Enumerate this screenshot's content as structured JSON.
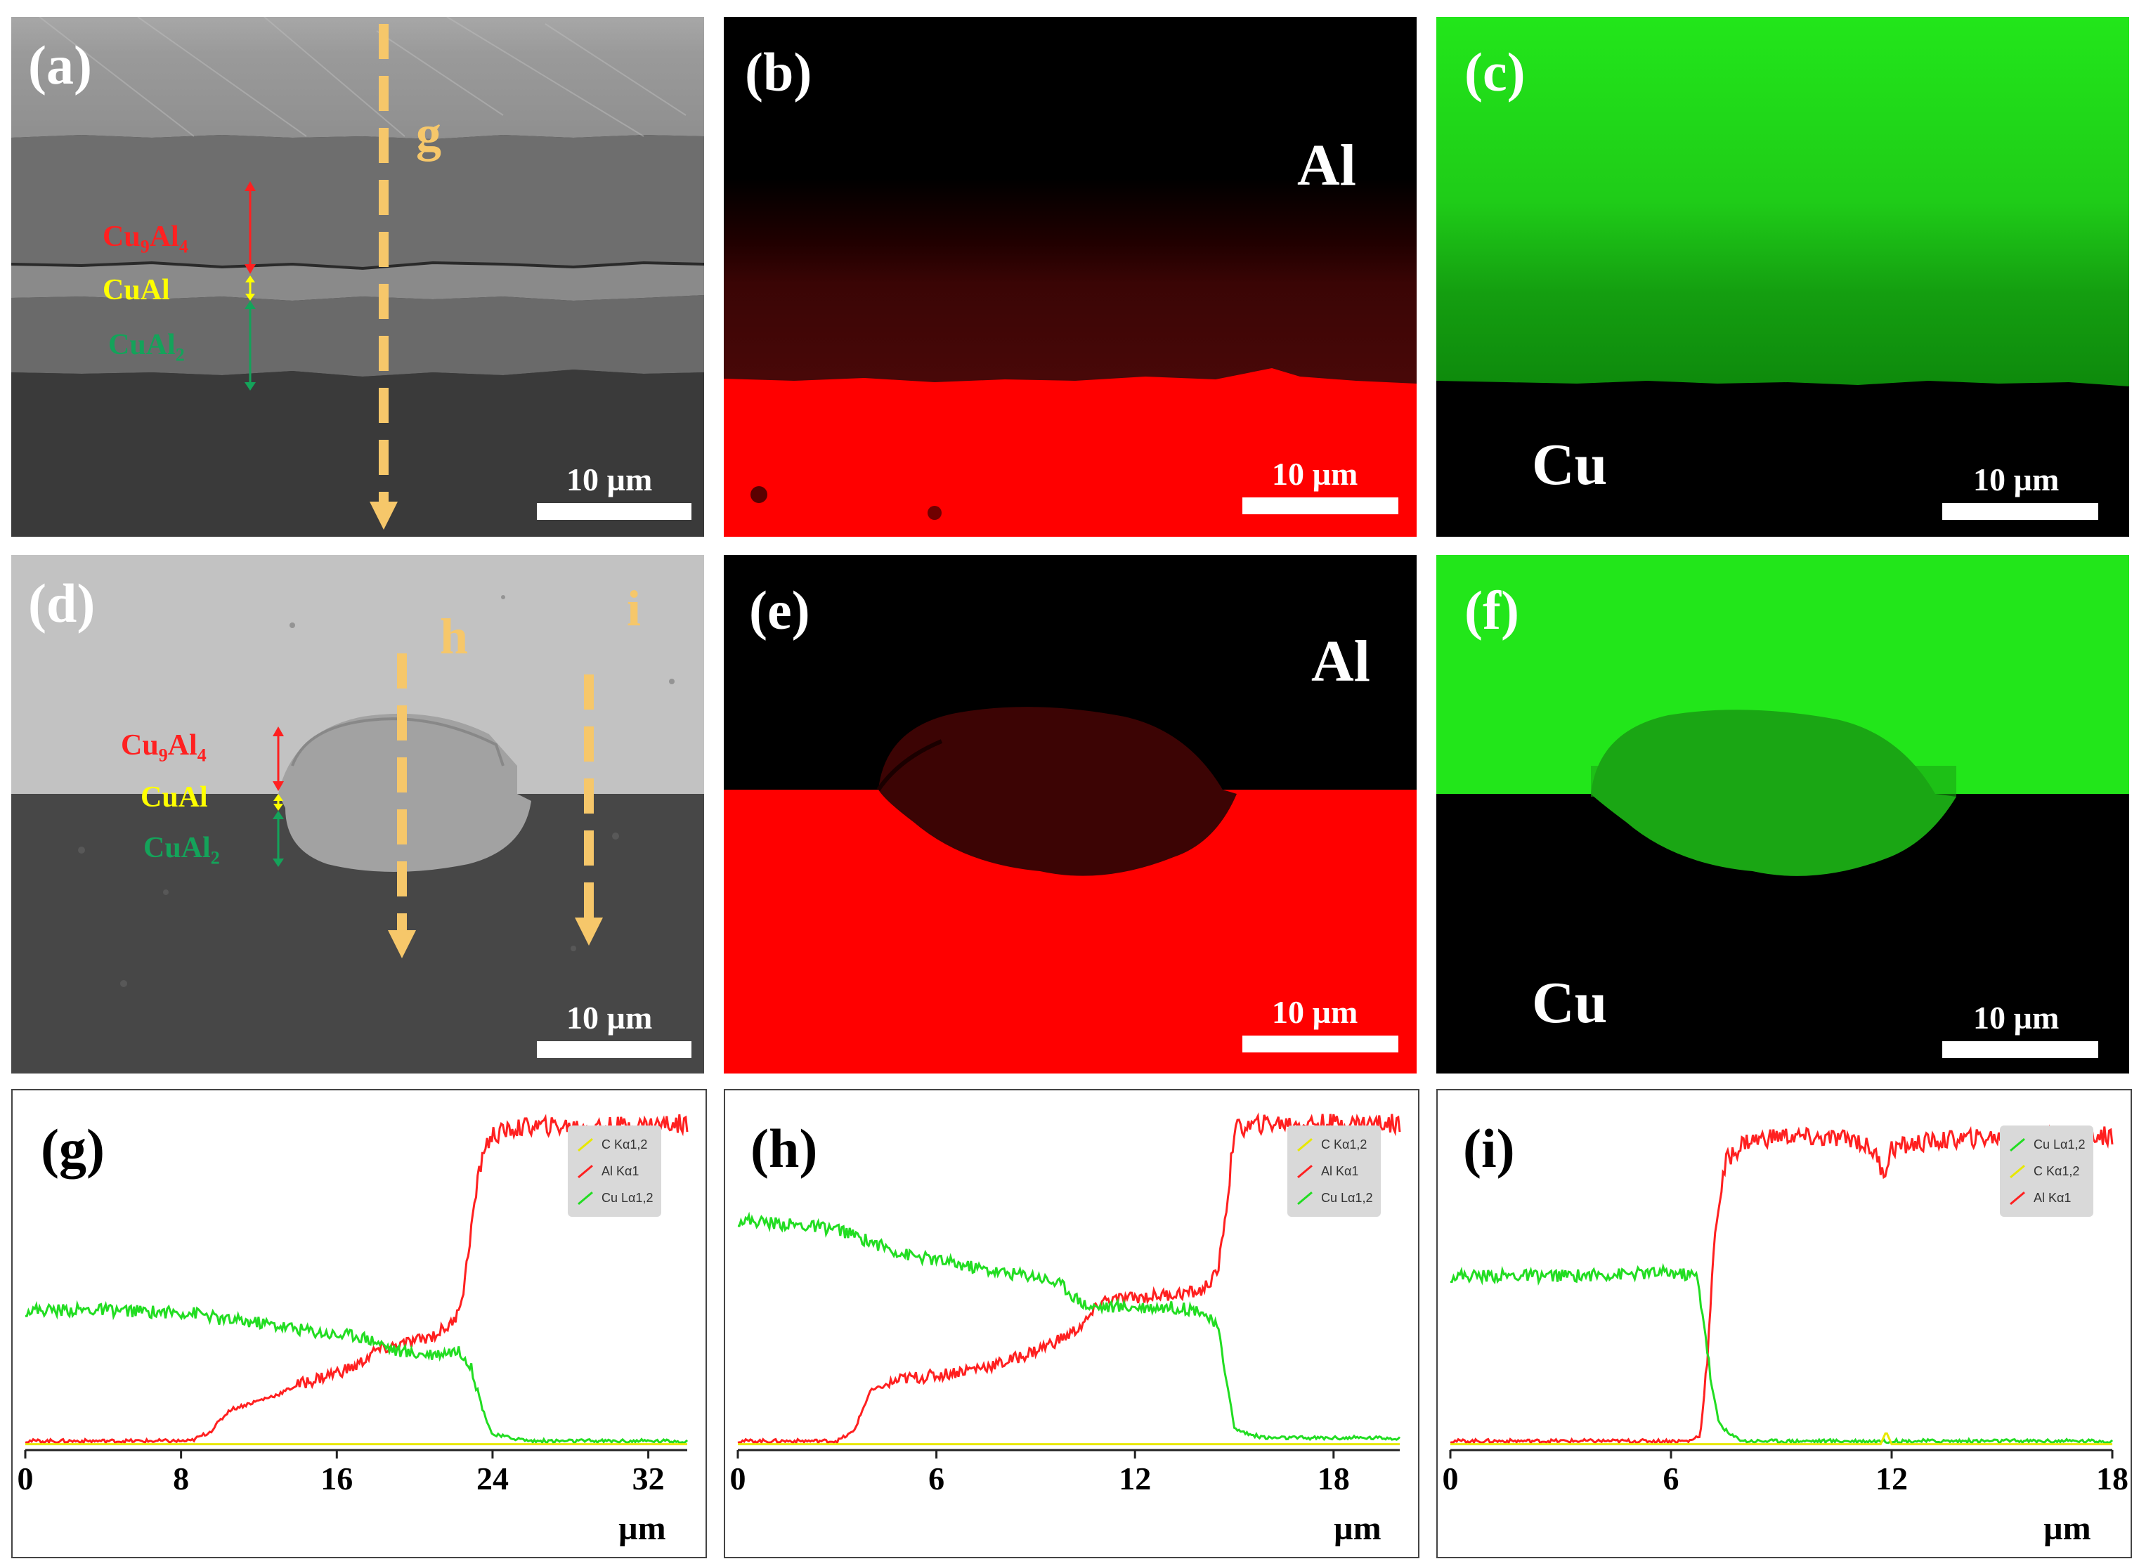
{
  "panels": {
    "a": {
      "label": "(a)",
      "line_label": "g",
      "scale": "10 µm",
      "phases": [
        {
          "name": "Cu",
          "sub": "9",
          "name2": "Al",
          "sub2": "4",
          "color": "#ff2020"
        },
        {
          "name": "CuAl",
          "color": "#ffff00"
        },
        {
          "name": "CuAl",
          "sub2": "2",
          "color": "#14a35a"
        }
      ]
    },
    "b": {
      "label": "(b)",
      "element": "Al",
      "scale": "10 µm"
    },
    "c": {
      "label": "(c)",
      "element": "Cu",
      "scale": "10 µm"
    },
    "d": {
      "label": "(d)",
      "line_label_h": "h",
      "line_label_i": "i",
      "scale": "10 µm"
    },
    "e": {
      "label": "(e)",
      "element": "Al",
      "scale": "10 µm"
    },
    "f": {
      "label": "(f)",
      "element": "Cu",
      "scale": "10 µm"
    }
  },
  "phase_text": {
    "cu9al4_a": "Cu",
    "cu9al4_b": "9",
    "cu9al4_c": "Al",
    "cu9al4_d": "4",
    "cual": "CuAl",
    "cual2_a": "CuAl",
    "cual2_b": "2"
  },
  "colors": {
    "al_map": "#ff0000",
    "cu_map": "#00ff00",
    "arrow": "#f6c76a",
    "al_line": "#ff2020",
    "cu_line": "#22dd22",
    "c_line": "#e8e800"
  },
  "chart_data": [
    {
      "type": "line",
      "title": "(g)",
      "xlabel": "µm",
      "xlim": [
        0,
        34
      ],
      "xticks": [
        0,
        8,
        16,
        24,
        32
      ],
      "legend": [
        "C Kα1,2",
        "Al Kα1",
        "Cu Lα1,2"
      ],
      "series": [
        {
          "name": "Al Kα1",
          "color": "#ff2020",
          "x": [
            0,
            8.5,
            9.5,
            10.5,
            12,
            13,
            14,
            16,
            17,
            18,
            20,
            21,
            22,
            22.5,
            23,
            23.5,
            24,
            25,
            26,
            30,
            34
          ],
          "y": [
            2,
            2,
            5,
            12,
            15,
            17,
            20,
            24,
            26,
            31,
            34,
            36,
            40,
            50,
            75,
            95,
            100,
            102,
            103,
            103,
            104
          ]
        },
        {
          "name": "Cu Lα1,2",
          "color": "#22dd22",
          "x": [
            0,
            4,
            9,
            10,
            12,
            14,
            16,
            17,
            18,
            19,
            20,
            21,
            22,
            22.5,
            23,
            23.5,
            24,
            26,
            30,
            34
          ],
          "y": [
            44,
            44,
            43,
            41,
            40,
            38,
            36,
            36,
            34,
            31,
            30,
            30,
            31,
            30,
            24,
            12,
            4,
            2,
            2,
            2
          ]
        },
        {
          "name": "C Kα1,2",
          "color": "#e8e800",
          "x": [
            0,
            34
          ],
          "y": [
            1,
            1
          ]
        }
      ]
    },
    {
      "type": "line",
      "title": "(h)",
      "xlabel": "µm",
      "xlim": [
        0,
        20
      ],
      "xticks": [
        0,
        6,
        12,
        18
      ],
      "legend": [
        "C Kα1,2",
        "Al Kα1",
        "Cu Lα1,2"
      ],
      "series": [
        {
          "name": "Al Kα1",
          "color": "#ff2020",
          "x": [
            0,
            3,
            3.5,
            4,
            5,
            6,
            7,
            8,
            9,
            10,
            10.5,
            11,
            12,
            13,
            14,
            14.5,
            14.8,
            15,
            15.5,
            16,
            18,
            20
          ],
          "y": [
            2,
            2,
            5,
            18,
            22,
            23,
            25,
            27,
            31,
            36,
            40,
            47,
            48,
            49,
            50,
            56,
            80,
            102,
            103,
            104,
            104,
            104
          ]
        },
        {
          "name": "Cu Lα1,2",
          "color": "#22dd22",
          "x": [
            0,
            2,
            3,
            4,
            5,
            6,
            7,
            8,
            9,
            9.8,
            10.2,
            10.6,
            11,
            12,
            13,
            14,
            14.5,
            14.8,
            15,
            15.5,
            16,
            18,
            20
          ],
          "y": [
            73,
            71,
            70,
            66,
            62,
            60,
            58,
            56,
            55,
            52,
            48,
            45,
            45,
            45,
            45,
            44,
            38,
            20,
            6,
            4,
            3,
            3,
            3
          ]
        },
        {
          "name": "C Kα1,2",
          "color": "#e8e800",
          "x": [
            0,
            20
          ],
          "y": [
            1,
            1
          ]
        }
      ]
    },
    {
      "type": "line",
      "title": "(i)",
      "xlabel": "µm",
      "xlim": [
        0,
        18
      ],
      "xticks": [
        0,
        6,
        12,
        18
      ],
      "legend": [
        "Cu Lα1,2",
        "C Kα1,2",
        "Al Kα1"
      ],
      "series": [
        {
          "name": "Al Kα1",
          "color": "#ff2020",
          "x": [
            0,
            6.5,
            6.8,
            7,
            7.2,
            7.5,
            8,
            9,
            10,
            11,
            11.5,
            11.8,
            12,
            13,
            14,
            16,
            18
          ],
          "y": [
            2,
            2,
            4,
            30,
            70,
            92,
            98,
            100,
            99,
            99,
            95,
            88,
            96,
            98,
            99,
            100,
            100
          ]
        },
        {
          "name": "Cu Lα1,2",
          "color": "#22dd22",
          "x": [
            0,
            3,
            6,
            6.7,
            6.9,
            7.1,
            7.3,
            7.6,
            8,
            10,
            12,
            14,
            18
          ],
          "y": [
            55,
            55,
            56,
            55,
            40,
            20,
            8,
            4,
            2,
            2,
            2,
            2,
            2
          ]
        },
        {
          "name": "C Kα1,2",
          "color": "#e8e800",
          "x": [
            0,
            11.7,
            11.85,
            12,
            18
          ],
          "y": [
            1,
            1,
            5,
            1,
            1
          ]
        }
      ]
    }
  ]
}
